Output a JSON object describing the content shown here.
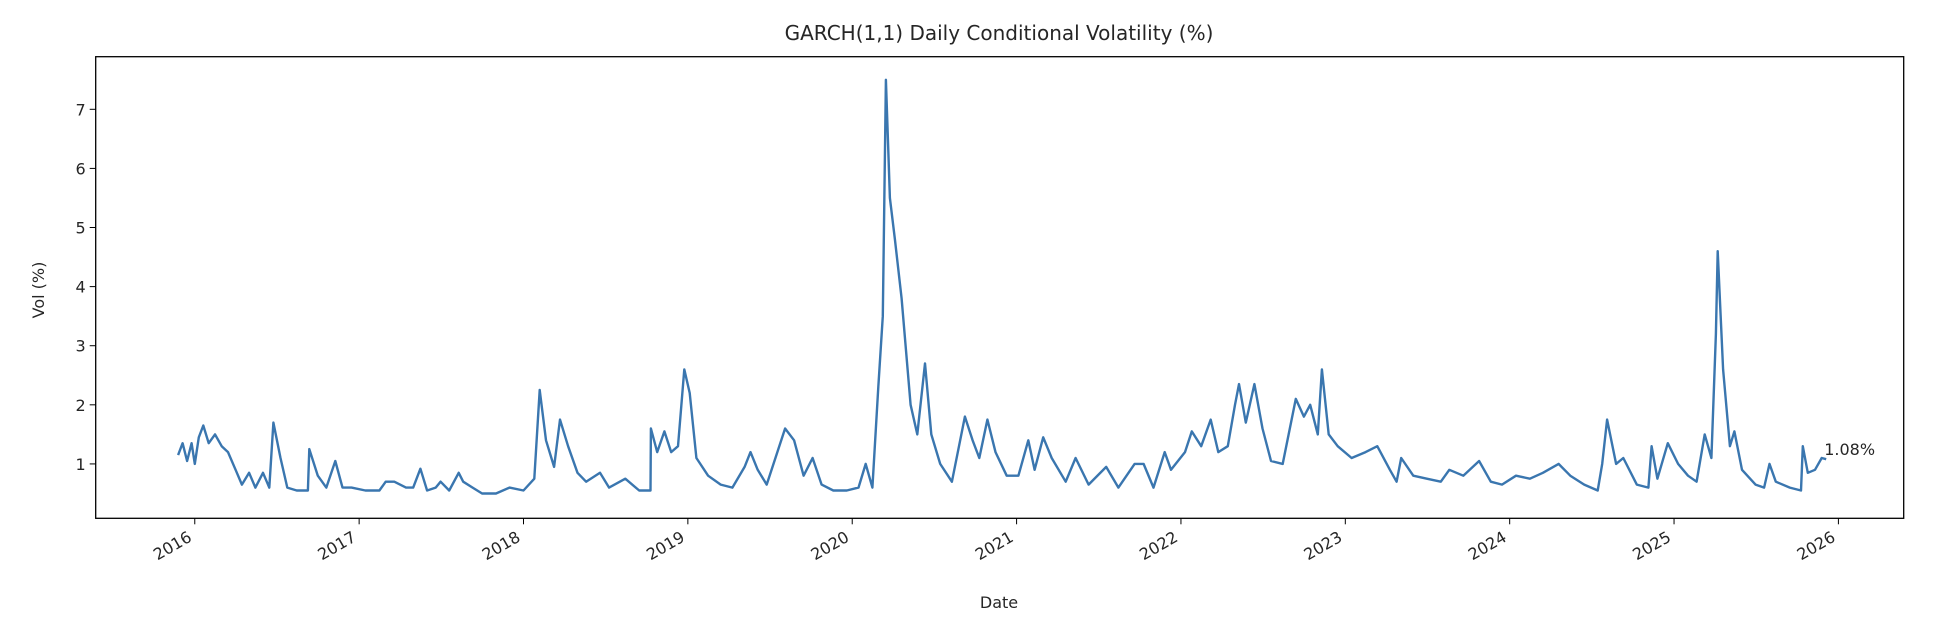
{
  "chart_data": {
    "type": "line",
    "title": "GARCH(1,1) Daily Conditional Volatility (%)",
    "xlabel": "Date",
    "ylabel": "Vol (%)",
    "xlim": [
      "2015-05-26",
      "2026-05-26"
    ],
    "ylim": [
      0.08,
      7.89
    ],
    "grid": false,
    "line_color": "#3a76af",
    "x_ticks": [
      "2016",
      "2017",
      "2018",
      "2019",
      "2020",
      "2021",
      "2022",
      "2023",
      "2024",
      "2025",
      "2026"
    ],
    "y_ticks": [
      "1",
      "2",
      "3",
      "4",
      "5",
      "6",
      "7"
    ],
    "annotation": "1.08%",
    "series": [
      {
        "x": [
          "2015-11-25",
          "2015-12-05",
          "2015-12-15",
          "2015-12-25",
          "2016-01-01",
          "2016-01-10",
          "2016-01-20",
          "2016-02-01",
          "2016-02-15",
          "2016-03-01",
          "2016-03-15",
          "2016-04-01",
          "2016-04-15",
          "2016-05-01",
          "2016-05-15",
          "2016-06-01",
          "2016-06-15",
          "2016-06-24",
          "2016-07-10",
          "2016-07-25",
          "2016-08-15",
          "2016-09-09",
          "2016-09-12",
          "2016-10-01",
          "2016-10-20",
          "2016-11-09",
          "2016-11-25",
          "2016-12-15",
          "2017-01-15",
          "2017-02-15",
          "2017-03-01",
          "2017-03-20",
          "2017-04-15",
          "2017-05-01",
          "2017-05-17",
          "2017-06-01",
          "2017-06-20",
          "2017-07-01",
          "2017-07-20",
          "2017-08-10",
          "2017-08-20",
          "2017-09-10",
          "2017-10-01",
          "2017-11-01",
          "2017-12-01",
          "2018-01-01",
          "2018-01-25",
          "2018-02-06",
          "2018-02-20",
          "2018-03-10",
          "2018-03-23",
          "2018-04-10",
          "2018-05-01",
          "2018-05-20",
          "2018-06-20",
          "2018-07-10",
          "2018-08-15",
          "2018-09-15",
          "2018-10-10",
          "2018-10-11",
          "2018-10-25",
          "2018-11-10",
          "2018-11-25",
          "2018-12-10",
          "2018-12-24",
          "2019-01-05",
          "2019-01-20",
          "2019-02-15",
          "2019-03-15",
          "2019-04-10",
          "2019-05-07",
          "2019-05-20",
          "2019-06-05",
          "2019-06-25",
          "2019-08-05",
          "2019-08-25",
          "2019-09-15",
          "2019-10-05",
          "2019-10-25",
          "2019-11-20",
          "2019-12-20",
          "2020-01-15",
          "2020-01-31",
          "2020-02-15",
          "2020-02-28",
          "2020-03-09",
          "2020-03-16",
          "2020-03-25",
          "2020-04-05",
          "2020-04-20",
          "2020-05-10",
          "2020-05-25",
          "2020-06-11",
          "2020-06-25",
          "2020-07-15",
          "2020-08-10",
          "2020-09-08",
          "2020-09-25",
          "2020-10-10",
          "2020-10-28",
          "2020-11-15",
          "2020-12-10",
          "2021-01-05",
          "2021-01-27",
          "2021-02-10",
          "2021-03-01",
          "2021-03-20",
          "2021-04-20",
          "2021-05-12",
          "2021-06-10",
          "2021-07-19",
          "2021-08-15",
          "2021-09-20",
          "2021-10-10",
          "2021-11-01",
          "2021-11-26",
          "2021-12-10",
          "2022-01-10",
          "2022-01-25",
          "2022-02-15",
          "2022-03-08",
          "2022-03-25",
          "2022-04-15",
          "2022-05-01",
          "2022-05-10",
          "2022-05-25",
          "2022-06-13",
          "2022-07-01",
          "2022-07-20",
          "2022-08-15",
          "2022-09-13",
          "2022-10-01",
          "2022-10-15",
          "2022-11-01",
          "2022-11-10",
          "2022-11-25",
          "2022-12-15",
          "2023-01-15",
          "2023-02-15",
          "2023-03-13",
          "2023-04-10",
          "2023-04-25",
          "2023-05-05",
          "2023-06-01",
          "2023-07-01",
          "2023-08-01",
          "2023-08-20",
          "2023-09-20",
          "2023-10-25",
          "2023-11-20",
          "2023-12-15",
          "2024-01-15",
          "2024-02-15",
          "2024-03-15",
          "2024-04-19",
          "2024-05-15",
          "2024-06-15",
          "2024-07-15",
          "2024-07-25",
          "2024-08-05",
          "2024-08-25",
          "2024-09-10",
          "2024-10-10",
          "2024-11-05",
          "2024-11-12",
          "2024-11-25",
          "2024-12-18",
          "2025-01-10",
          "2025-02-01",
          "2025-02-20",
          "2025-03-10",
          "2025-03-25",
          "2025-04-04",
          "2025-04-08",
          "2025-04-20",
          "2025-05-05",
          "2025-05-15",
          "2025-06-01",
          "2025-07-01",
          "2025-07-20",
          "2025-08-01",
          "2025-08-15",
          "2025-09-15",
          "2025-10-10",
          "2025-10-14",
          "2025-10-25",
          "2025-11-10",
          "2025-11-25",
          "2025-12-05"
        ],
        "y": [
          1.15,
          1.35,
          1.05,
          1.35,
          1.0,
          1.45,
          1.65,
          1.35,
          1.5,
          1.3,
          1.2,
          0.9,
          0.65,
          0.85,
          0.6,
          0.85,
          0.6,
          1.7,
          1.1,
          0.6,
          0.55,
          0.55,
          1.25,
          0.8,
          0.6,
          1.05,
          0.6,
          0.6,
          0.55,
          0.55,
          0.7,
          0.7,
          0.6,
          0.6,
          0.92,
          0.55,
          0.6,
          0.7,
          0.55,
          0.85,
          0.7,
          0.6,
          0.5,
          0.5,
          0.6,
          0.55,
          0.75,
          2.25,
          1.4,
          0.95,
          1.75,
          1.3,
          0.85,
          0.7,
          0.85,
          0.6,
          0.75,
          0.55,
          0.55,
          1.6,
          1.2,
          1.55,
          1.2,
          1.3,
          2.6,
          2.2,
          1.1,
          0.8,
          0.65,
          0.6,
          0.95,
          1.2,
          0.9,
          0.65,
          1.6,
          1.4,
          0.8,
          1.1,
          0.65,
          0.55,
          0.55,
          0.6,
          1.0,
          0.6,
          2.3,
          3.5,
          7.5,
          5.5,
          4.8,
          3.8,
          2.0,
          1.5,
          2.7,
          1.5,
          1.0,
          0.7,
          1.8,
          1.4,
          1.1,
          1.75,
          1.2,
          0.8,
          0.8,
          1.4,
          0.9,
          1.45,
          1.1,
          0.7,
          1.1,
          0.65,
          0.95,
          0.6,
          1.0,
          1.0,
          0.6,
          1.2,
          0.9,
          1.2,
          1.55,
          1.3,
          1.75,
          1.2,
          1.3,
          2.0,
          2.35,
          1.7,
          2.35,
          1.6,
          1.05,
          1.0,
          2.1,
          1.8,
          2.0,
          1.5,
          2.6,
          1.5,
          1.3,
          1.1,
          1.2,
          1.3,
          0.9,
          0.7,
          1.1,
          0.8,
          0.75,
          0.7,
          0.9,
          0.8,
          1.05,
          0.7,
          0.65,
          0.8,
          0.75,
          0.85,
          1.0,
          0.8,
          0.65,
          0.55,
          1.0,
          1.75,
          1.0,
          1.1,
          0.65,
          0.6,
          1.3,
          0.75,
          1.35,
          1.0,
          0.8,
          0.7,
          1.5,
          1.1,
          3.2,
          4.6,
          2.6,
          1.3,
          1.55,
          0.9,
          0.65,
          0.6,
          1.0,
          0.7,
          0.6,
          0.55,
          1.3,
          0.85,
          0.9,
          1.1,
          1.08
        ]
      }
    ]
  }
}
